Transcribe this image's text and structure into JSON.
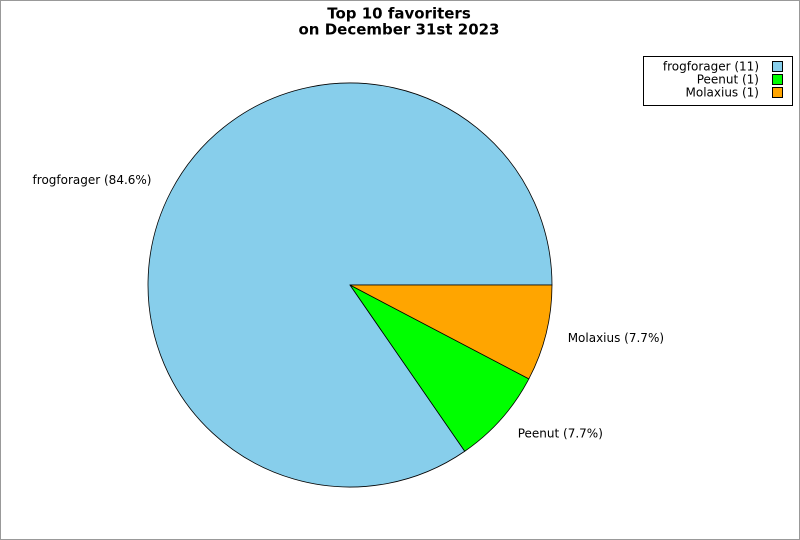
{
  "chart_data": {
    "type": "pie",
    "title": "Top 10 favoriters",
    "subtitle": "on December 31st 2023",
    "categories": [
      "frogforager",
      "Peenut",
      "Molaxius"
    ],
    "values": [
      11,
      1,
      1
    ],
    "value_labels": [
      "frogforager (11)",
      "Peenut (1)",
      "Molaxius (1)"
    ],
    "percentages": [
      84.6,
      7.7,
      7.7
    ],
    "percentage_labels": [
      "frogforager (84.6%)",
      "Peenut (7.7%)",
      "Molaxius (7.7%)"
    ],
    "colors": [
      "#87ceeb",
      "#00ff00",
      "#ffa500"
    ],
    "legend": "upper right"
  }
}
